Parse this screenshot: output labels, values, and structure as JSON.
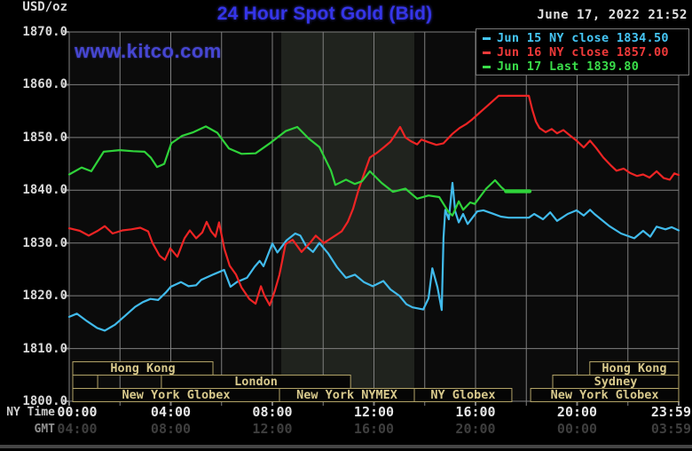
{
  "header": {
    "unit": "USD/oz",
    "title": "24 Hour Spot Gold (Bid)",
    "datetime": "June 17, 2022 21:52",
    "watermark": "www.kitco.com"
  },
  "colors": {
    "title": "#3535e8",
    "watermark": "#4646d2",
    "cyan": "#41bbec",
    "red": "#ee2424",
    "green": "#2fd33a",
    "grid": "#7f7f7f",
    "band": "#20231e",
    "plot_bg": "#0b0b0b",
    "session_text": "#d8c98c",
    "session_border": "#b3a468",
    "axis_text": "#d8d8d8",
    "gmt_text": "#3e3e3e"
  },
  "legend": [
    {
      "label": "Jun 15 NY close 1834.50",
      "color": "#45c6f5"
    },
    {
      "label": "Jun 16 NY close 1857.00",
      "color": "#f03a3a"
    },
    {
      "label": "Jun 17 Last 1839.80",
      "color": "#3ade4a"
    }
  ],
  "y_axis": {
    "labels": [
      "1870.0",
      "1860.0",
      "1850.0",
      "1840.0",
      "1830.0",
      "1820.0",
      "1810.0",
      "1800.0"
    ]
  },
  "x_axis": {
    "ny_label": "NY Time",
    "gmt_label": "GMT",
    "ticks": [
      {
        "t": 0,
        "ny": "00:00",
        "gmt": "04:00"
      },
      {
        "t": 4,
        "ny": "04:00",
        "gmt": "08:00"
      },
      {
        "t": 8,
        "ny": "08:00",
        "gmt": "12:00"
      },
      {
        "t": 12,
        "ny": "12:00",
        "gmt": "16:00"
      },
      {
        "t": 16,
        "ny": "16:00",
        "gmt": "20:00"
      },
      {
        "t": 20,
        "ny": "20:00",
        "gmt": "00:00"
      },
      {
        "t": 23.98,
        "ny": "23:59",
        "gmt": "03:59"
      }
    ]
  },
  "sessions": {
    "rows": [
      [
        {
          "label": "Hong Kong",
          "t1": 0.14,
          "t2": 5.66
        },
        {
          "label": "Hong Kong",
          "t1": 20.5,
          "t2": 24
        }
      ],
      [
        {
          "label": "",
          "t1": 0.14,
          "t2": 1.12
        },
        {
          "label": "London",
          "t1": 3.63,
          "t2": 11.08
        },
        {
          "label": "Sydney",
          "t1": 19.04,
          "t2": 24
        }
      ],
      [
        {
          "label": "New York Globex",
          "t1": 0.14,
          "t2": 8.28
        },
        {
          "label": "New York NYMEX",
          "t1": 8.28,
          "t2": 13.59
        },
        {
          "label": "NY Globex",
          "t1": 13.59,
          "t2": 17.43
        },
        {
          "label": "New York Globex",
          "t1": 18.17,
          "t2": 24
        }
      ]
    ]
  },
  "chart_data": {
    "type": "line",
    "title": "24 Hour Spot Gold (Bid)",
    "ylabel": "USD/oz",
    "xlabel": "NY Time (hours 00:00-23:59)",
    "ylim": [
      1800,
      1870
    ],
    "xlim_hours": [
      0,
      24
    ],
    "grid": true,
    "shaded_region_hours": [
      8.35,
      13.59
    ],
    "legend_position": "top-right",
    "series": [
      {
        "name": "Jun 15 NY close 1834.50",
        "color_key": "cyan",
        "points": [
          [
            0,
            1816.0
          ],
          [
            0.3,
            1816.6
          ],
          [
            0.7,
            1815.2
          ],
          [
            1.1,
            1813.9
          ],
          [
            1.4,
            1813.4
          ],
          [
            1.8,
            1814.5
          ],
          [
            2.2,
            1816.2
          ],
          [
            2.6,
            1817.9
          ],
          [
            2.9,
            1818.8
          ],
          [
            3.2,
            1819.4
          ],
          [
            3.5,
            1819.2
          ],
          [
            3.8,
            1820.6
          ],
          [
            4.0,
            1821.7
          ],
          [
            4.4,
            1822.6
          ],
          [
            4.7,
            1821.8
          ],
          [
            5.0,
            1822.0
          ],
          [
            5.2,
            1823.0
          ],
          [
            5.7,
            1824.1
          ],
          [
            6.1,
            1824.9
          ],
          [
            6.35,
            1821.7
          ],
          [
            6.6,
            1822.6
          ],
          [
            7.0,
            1823.4
          ],
          [
            7.3,
            1825.5
          ],
          [
            7.5,
            1826.6
          ],
          [
            7.65,
            1825.6
          ],
          [
            8.0,
            1829.9
          ],
          [
            8.2,
            1828.2
          ],
          [
            8.56,
            1830.5
          ],
          [
            8.9,
            1831.8
          ],
          [
            9.1,
            1831.4
          ],
          [
            9.33,
            1829.4
          ],
          [
            9.6,
            1828.3
          ],
          [
            9.85,
            1830.0
          ],
          [
            10.2,
            1828.0
          ],
          [
            10.55,
            1825.4
          ],
          [
            10.9,
            1823.4
          ],
          [
            11.25,
            1824.0
          ],
          [
            11.6,
            1822.6
          ],
          [
            11.95,
            1821.8
          ],
          [
            12.37,
            1822.8
          ],
          [
            12.65,
            1821.2
          ],
          [
            13.0,
            1820.0
          ],
          [
            13.28,
            1818.4
          ],
          [
            13.52,
            1817.8
          ],
          [
            13.94,
            1817.4
          ],
          [
            14.15,
            1819.5
          ],
          [
            14.3,
            1825.2
          ],
          [
            14.5,
            1821.6
          ],
          [
            14.67,
            1817.3
          ],
          [
            14.74,
            1831.0
          ],
          [
            14.81,
            1836.3
          ],
          [
            14.95,
            1834.5
          ],
          [
            15.09,
            1841.4
          ],
          [
            15.2,
            1836.0
          ],
          [
            15.34,
            1833.9
          ],
          [
            15.51,
            1835.5
          ],
          [
            15.69,
            1833.6
          ],
          [
            16.07,
            1836.0
          ],
          [
            16.31,
            1836.2
          ],
          [
            16.66,
            1835.6
          ],
          [
            17.0,
            1835.0
          ],
          [
            17.3,
            1834.8
          ],
          [
            18.1,
            1834.8
          ],
          [
            18.31,
            1835.5
          ],
          [
            18.66,
            1834.5
          ],
          [
            18.94,
            1835.8
          ],
          [
            19.21,
            1834.2
          ],
          [
            19.63,
            1835.5
          ],
          [
            19.98,
            1836.2
          ],
          [
            20.26,
            1835.2
          ],
          [
            20.51,
            1836.3
          ],
          [
            20.68,
            1835.5
          ],
          [
            21.27,
            1833.2
          ],
          [
            21.73,
            1831.8
          ],
          [
            22.25,
            1830.9
          ],
          [
            22.6,
            1832.3
          ],
          [
            22.88,
            1831.2
          ],
          [
            23.13,
            1833.1
          ],
          [
            23.48,
            1832.6
          ],
          [
            23.72,
            1833.0
          ],
          [
            24,
            1832.4
          ]
        ]
      },
      {
        "name": "Jun 16 NY close 1857.00",
        "color_key": "red",
        "points": [
          [
            0,
            1832.8
          ],
          [
            0.42,
            1832.3
          ],
          [
            0.77,
            1831.4
          ],
          [
            1.12,
            1832.3
          ],
          [
            1.4,
            1833.2
          ],
          [
            1.71,
            1831.8
          ],
          [
            2.1,
            1832.4
          ],
          [
            2.45,
            1832.6
          ],
          [
            2.8,
            1832.9
          ],
          [
            3.11,
            1832.2
          ],
          [
            3.28,
            1830.0
          ],
          [
            3.56,
            1827.6
          ],
          [
            3.77,
            1826.8
          ],
          [
            3.98,
            1829.0
          ],
          [
            4.26,
            1827.4
          ],
          [
            4.54,
            1830.9
          ],
          [
            4.75,
            1832.4
          ],
          [
            5.0,
            1830.9
          ],
          [
            5.24,
            1832.0
          ],
          [
            5.41,
            1834.0
          ],
          [
            5.59,
            1832.2
          ],
          [
            5.76,
            1831.2
          ],
          [
            5.9,
            1833.9
          ],
          [
            6.11,
            1828.9
          ],
          [
            6.32,
            1825.7
          ],
          [
            6.57,
            1824.0
          ],
          [
            6.78,
            1821.6
          ],
          [
            7.09,
            1819.4
          ],
          [
            7.34,
            1818.5
          ],
          [
            7.55,
            1821.8
          ],
          [
            7.69,
            1820.0
          ],
          [
            7.9,
            1818.2
          ],
          [
            8.1,
            1821.0
          ],
          [
            8.28,
            1824.0
          ],
          [
            8.52,
            1829.8
          ],
          [
            8.8,
            1830.6
          ],
          [
            9.15,
            1828.3
          ],
          [
            9.5,
            1830.1
          ],
          [
            9.71,
            1831.4
          ],
          [
            10.03,
            1830.0
          ],
          [
            10.38,
            1831.1
          ],
          [
            10.73,
            1832.2
          ],
          [
            10.97,
            1834.0
          ],
          [
            11.18,
            1836.5
          ],
          [
            11.39,
            1840.0
          ],
          [
            11.6,
            1843.0
          ],
          [
            11.84,
            1846.2
          ],
          [
            12.12,
            1847.1
          ],
          [
            12.4,
            1848.2
          ],
          [
            12.65,
            1849.2
          ],
          [
            12.82,
            1850.4
          ],
          [
            13.03,
            1852.0
          ],
          [
            13.24,
            1850.0
          ],
          [
            13.45,
            1849.3
          ],
          [
            13.7,
            1848.7
          ],
          [
            13.87,
            1849.6
          ],
          [
            14.15,
            1849.1
          ],
          [
            14.46,
            1848.6
          ],
          [
            14.74,
            1848.9
          ],
          [
            15.09,
            1850.7
          ],
          [
            15.37,
            1851.8
          ],
          [
            15.65,
            1852.6
          ],
          [
            15.86,
            1853.4
          ],
          [
            16.14,
            1854.6
          ],
          [
            16.42,
            1855.8
          ],
          [
            16.7,
            1857.0
          ],
          [
            16.91,
            1857.9
          ],
          [
            18.1,
            1857.9
          ],
          [
            18.24,
            1855.2
          ],
          [
            18.38,
            1853.0
          ],
          [
            18.52,
            1851.8
          ],
          [
            18.76,
            1851.0
          ],
          [
            19.0,
            1851.6
          ],
          [
            19.21,
            1850.8
          ],
          [
            19.46,
            1851.4
          ],
          [
            19.74,
            1850.3
          ],
          [
            19.98,
            1849.4
          ],
          [
            20.26,
            1848.1
          ],
          [
            20.51,
            1849.4
          ],
          [
            20.75,
            1848.0
          ],
          [
            21.03,
            1846.2
          ],
          [
            21.31,
            1844.8
          ],
          [
            21.55,
            1843.7
          ],
          [
            21.83,
            1844.1
          ],
          [
            22.08,
            1843.3
          ],
          [
            22.36,
            1842.7
          ],
          [
            22.6,
            1843.0
          ],
          [
            22.85,
            1842.4
          ],
          [
            23.13,
            1843.6
          ],
          [
            23.41,
            1842.3
          ],
          [
            23.65,
            1842.0
          ],
          [
            23.83,
            1843.2
          ],
          [
            24,
            1842.9
          ]
        ]
      },
      {
        "name": "Jun 17 Last 1839.80",
        "color_key": "green",
        "thick_tail": true,
        "points": [
          [
            0,
            1843.0
          ],
          [
            0.49,
            1844.3
          ],
          [
            0.87,
            1843.6
          ],
          [
            1.36,
            1847.3
          ],
          [
            1.99,
            1847.6
          ],
          [
            2.52,
            1847.4
          ],
          [
            2.97,
            1847.3
          ],
          [
            3.21,
            1846.2
          ],
          [
            3.46,
            1844.4
          ],
          [
            3.74,
            1845.0
          ],
          [
            4.02,
            1848.9
          ],
          [
            4.44,
            1850.3
          ],
          [
            4.89,
            1851.0
          ],
          [
            5.38,
            1852.1
          ],
          [
            5.83,
            1850.9
          ],
          [
            6.29,
            1847.9
          ],
          [
            6.78,
            1846.9
          ],
          [
            7.34,
            1847.0
          ],
          [
            7.93,
            1849.0
          ],
          [
            8.52,
            1851.2
          ],
          [
            8.98,
            1852.0
          ],
          [
            9.43,
            1849.8
          ],
          [
            9.85,
            1848.2
          ],
          [
            10.31,
            1843.7
          ],
          [
            10.48,
            1841.0
          ],
          [
            10.9,
            1842.0
          ],
          [
            11.25,
            1841.2
          ],
          [
            11.53,
            1841.7
          ],
          [
            11.84,
            1843.6
          ],
          [
            12.3,
            1841.4
          ],
          [
            12.75,
            1839.7
          ],
          [
            13.24,
            1840.3
          ],
          [
            13.7,
            1838.4
          ],
          [
            14.15,
            1839.0
          ],
          [
            14.57,
            1838.7
          ],
          [
            14.92,
            1836.0
          ],
          [
            15.09,
            1835.2
          ],
          [
            15.34,
            1837.9
          ],
          [
            15.51,
            1836.3
          ],
          [
            15.79,
            1837.7
          ],
          [
            15.97,
            1837.4
          ],
          [
            16.42,
            1840.3
          ],
          [
            16.77,
            1841.9
          ],
          [
            17.01,
            1840.6
          ],
          [
            17.2,
            1839.8
          ],
          [
            18.13,
            1839.8
          ]
        ]
      }
    ]
  }
}
